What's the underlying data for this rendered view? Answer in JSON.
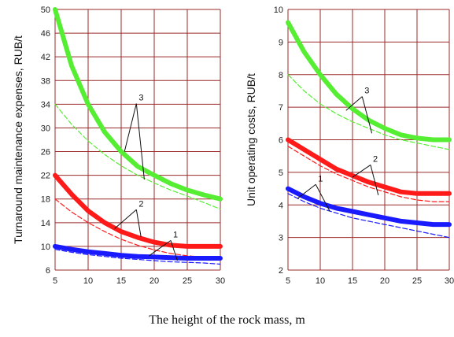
{
  "chart_data": [
    {
      "type": "line",
      "ylabel": "Turnaround maintenance expenses, RUB/t",
      "xlim": [
        5,
        30
      ],
      "ylim": [
        6,
        50
      ],
      "xticks": [
        5,
        10,
        15,
        20,
        25,
        30
      ],
      "yticks": [
        6,
        10,
        14,
        18,
        22,
        26,
        30,
        34,
        38,
        42,
        46,
        50
      ],
      "grid": true,
      "colors": {
        "grid": "#9b2a2a",
        "green": "#55ee33",
        "red": "#ff1a1a",
        "blue": "#1a1aff"
      },
      "x": [
        5,
        7.5,
        10,
        12.5,
        15,
        17.5,
        20,
        22.5,
        25,
        27.5,
        30
      ],
      "series": [
        {
          "name": "3",
          "color": "green",
          "style": "thick",
          "values": [
            50.0,
            40.5,
            34.0,
            29.3,
            26.0,
            23.5,
            22.0,
            20.6,
            19.5,
            18.7,
            18.0
          ]
        },
        {
          "name": "3",
          "color": "green",
          "style": "dashed",
          "values": [
            34.0,
            30.6,
            27.8,
            25.5,
            23.6,
            22.0,
            20.7,
            19.5,
            18.5,
            17.4,
            16.3
          ]
        },
        {
          "name": "2",
          "color": "red",
          "style": "thick",
          "values": [
            22.0,
            18.8,
            16.0,
            14.0,
            12.5,
            11.5,
            10.7,
            10.2,
            10.0,
            10.0,
            10.0
          ]
        },
        {
          "name": "2",
          "color": "red",
          "style": "dashed",
          "values": [
            18.0,
            15.8,
            14.0,
            12.5,
            11.2,
            10.2,
            9.4,
            8.8,
            8.4,
            8.2,
            8.0
          ]
        },
        {
          "name": "1",
          "color": "blue",
          "style": "thick",
          "values": [
            10.0,
            9.5,
            9.1,
            8.8,
            8.5,
            8.3,
            8.2,
            8.1,
            8.0,
            8.0,
            8.0
          ]
        },
        {
          "name": "1",
          "color": "blue",
          "style": "dashed",
          "values": [
            9.5,
            9.0,
            8.6,
            8.3,
            8.0,
            7.8,
            7.6,
            7.4,
            7.3,
            7.2,
            7.0
          ]
        }
      ],
      "callouts": [
        {
          "label": "3",
          "at": [
            17.3,
            34.5
          ],
          "targets": [
            [
              15.5,
              26.0
            ],
            [
              18.5,
              21.3
            ]
          ]
        },
        {
          "label": "2",
          "at": [
            17.3,
            16.6
          ],
          "targets": [
            [
              14.0,
              13.0
            ],
            [
              18.0,
              11.6
            ]
          ]
        },
        {
          "label": "1",
          "at": [
            22.5,
            11.4
          ],
          "targets": [
            [
              19.2,
              8.4
            ],
            [
              23.5,
              7.6
            ]
          ]
        }
      ]
    },
    {
      "type": "line",
      "ylabel": "Unit operating costs, RUB/t",
      "xlim": [
        5,
        30
      ],
      "ylim": [
        2,
        10
      ],
      "xticks": [
        5,
        10,
        15,
        20,
        25,
        30
      ],
      "yticks": [
        2,
        3,
        4,
        5,
        6,
        7,
        8,
        9,
        10
      ],
      "grid": true,
      "colors": {
        "grid": "#9b2a2a",
        "green": "#55ee33",
        "red": "#ff1a1a",
        "blue": "#1a1aff"
      },
      "x": [
        5,
        7.5,
        10,
        12.5,
        15,
        17.5,
        20,
        22.5,
        25,
        27.5,
        30
      ],
      "series": [
        {
          "name": "3",
          "color": "green",
          "style": "thick",
          "values": [
            9.6,
            8.7,
            8.0,
            7.4,
            6.95,
            6.6,
            6.35,
            6.15,
            6.05,
            6.0,
            6.0
          ]
        },
        {
          "name": "3",
          "color": "green",
          "style": "dashed",
          "values": [
            8.0,
            7.5,
            7.1,
            6.8,
            6.55,
            6.35,
            6.15,
            6.0,
            5.9,
            5.8,
            5.7
          ]
        },
        {
          "name": "2",
          "color": "red",
          "style": "thick",
          "values": [
            6.0,
            5.7,
            5.4,
            5.1,
            4.9,
            4.7,
            4.55,
            4.4,
            4.35,
            4.35,
            4.35
          ]
        },
        {
          "name": "2",
          "color": "red",
          "style": "dashed",
          "values": [
            5.8,
            5.5,
            5.2,
            4.95,
            4.75,
            4.55,
            4.4,
            4.25,
            4.15,
            4.1,
            4.1
          ]
        },
        {
          "name": "1",
          "color": "blue",
          "style": "thick",
          "values": [
            4.5,
            4.25,
            4.05,
            3.9,
            3.8,
            3.7,
            3.6,
            3.5,
            3.45,
            3.4,
            3.4
          ]
        },
        {
          "name": "1",
          "color": "blue",
          "style": "dashed",
          "values": [
            4.35,
            4.1,
            3.9,
            3.75,
            3.6,
            3.5,
            3.4,
            3.3,
            3.2,
            3.1,
            3.0
          ]
        }
      ],
      "callouts": [
        {
          "label": "3",
          "at": [
            16.5,
            7.4
          ],
          "targets": [
            [
              14.0,
              6.9
            ],
            [
              18.0,
              6.2
            ]
          ]
        },
        {
          "label": "2",
          "at": [
            17.8,
            5.3
          ],
          "targets": [
            [
              15.0,
              4.85
            ],
            [
              19.0,
              4.3
            ]
          ]
        },
        {
          "label": "1",
          "at": [
            9.3,
            4.7
          ],
          "targets": [
            [
              6.5,
              4.2
            ],
            [
              11.5,
              3.8
            ]
          ]
        }
      ]
    }
  ],
  "xlabel": "The height of the rock mass, m"
}
